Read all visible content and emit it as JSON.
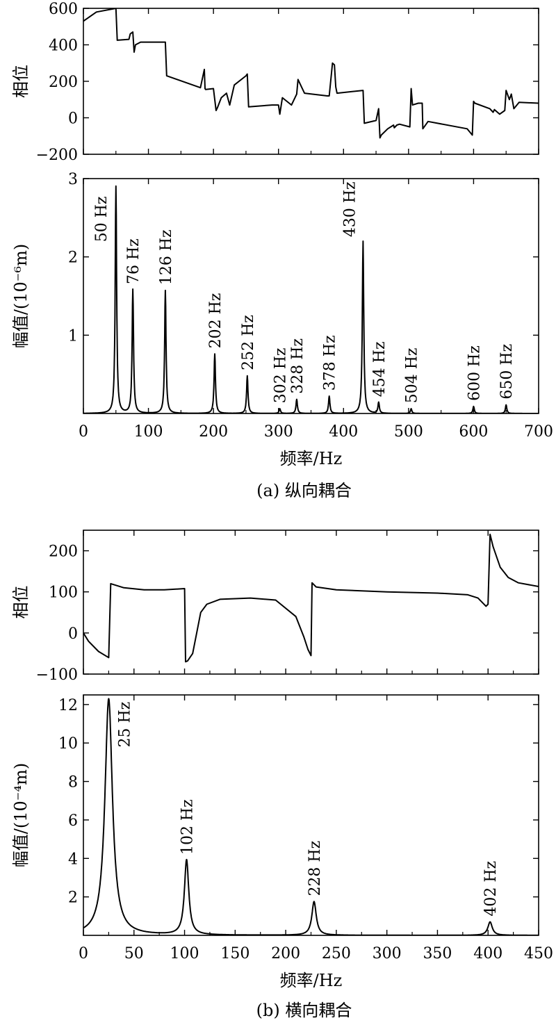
{
  "chart_data": [
    {
      "id": "a",
      "caption": "(a) 纵向耦合",
      "xlabel": "频率/Hz",
      "xlim": [
        0,
        700
      ],
      "xticks": [
        0,
        100,
        200,
        300,
        400,
        500,
        600,
        700
      ],
      "panels": [
        {
          "type": "line",
          "ylabel": "相位",
          "ylim": [
            -200,
            600
          ],
          "yticks": [
            -200,
            0,
            200,
            400,
            600
          ],
          "series": [
            {
              "x": [
                0,
                20,
                50,
                52,
                70,
                72,
                76,
                78,
                80,
                88,
                118,
                126,
                128,
                180,
                186,
                187,
                188,
                200,
                204,
                206,
                212,
                220,
                225,
                232,
                250,
                252,
                254,
                290,
                300,
                302,
                306,
                320,
                328,
                330,
                340,
                375,
                378,
                383,
                386,
                388,
                390,
                430,
                432,
                450,
                454,
                456,
                458,
                468,
                477,
                478,
                482,
                486,
                502,
                504,
                506,
                515,
                521,
                522,
                530,
                590,
                598,
                600,
                602,
                625,
                630,
                632,
                640,
                648,
                650,
                655,
                658,
                662,
                670,
                700
              ],
              "y": [
                530,
                580,
                600,
                425,
                430,
                460,
                470,
                360,
                400,
                415,
                415,
                415,
                230,
                165,
                265,
                160,
                155,
                160,
                40,
                55,
                110,
                135,
                70,
                180,
                230,
                240,
                60,
                70,
                70,
                20,
                110,
                70,
                130,
                210,
                135,
                120,
                120,
                300,
                290,
                170,
                135,
                150,
                -30,
                -15,
                50,
                -110,
                -95,
                -60,
                -40,
                -55,
                -40,
                -35,
                -50,
                160,
                70,
                80,
                80,
                -60,
                -20,
                -60,
                -95,
                90,
                80,
                50,
                30,
                45,
                20,
                40,
                150,
                100,
                130,
                50,
                85,
                80
              ]
            }
          ]
        },
        {
          "type": "line",
          "ylabel": "幅值/(10⁻⁶m)",
          "ylim": [
            0,
            3
          ],
          "yticks": [
            1,
            2,
            3
          ],
          "peaks": [
            {
              "x": 50,
              "amp": 2.9,
              "label": "50 Hz"
            },
            {
              "x": 76,
              "amp": 1.58,
              "label": "76 Hz"
            },
            {
              "x": 126,
              "amp": 1.57,
              "label": "126 Hz"
            },
            {
              "x": 202,
              "amp": 0.76,
              "label": "202 Hz"
            },
            {
              "x": 252,
              "amp": 0.48,
              "label": "252 Hz"
            },
            {
              "x": 302,
              "amp": 0.06,
              "label": "302 Hz"
            },
            {
              "x": 328,
              "amp": 0.18,
              "label": "328 Hz"
            },
            {
              "x": 378,
              "amp": 0.22,
              "label": "378 Hz"
            },
            {
              "x": 430,
              "amp": 2.2,
              "label": "430 Hz"
            },
            {
              "x": 454,
              "amp": 0.14,
              "label": "454 Hz"
            },
            {
              "x": 504,
              "amp": 0.06,
              "label": "504 Hz"
            },
            {
              "x": 600,
              "amp": 0.09,
              "label": "600 Hz"
            },
            {
              "x": 650,
              "amp": 0.11,
              "label": "650 Hz"
            }
          ]
        }
      ]
    },
    {
      "id": "b",
      "caption": "(b) 横向耦合",
      "xlabel": "频率/Hz",
      "xlim": [
        0,
        450
      ],
      "xticks": [
        0,
        50,
        100,
        150,
        200,
        250,
        300,
        350,
        400,
        450
      ],
      "panels": [
        {
          "type": "line",
          "ylabel": "相位",
          "ylim": [
            -100,
            250
          ],
          "yticks": [
            -100,
            0,
            100,
            200
          ],
          "series": [
            {
              "x": [
                0,
                5,
                15,
                25,
                27,
                40,
                60,
                80,
                100,
                101,
                103,
                108,
                112,
                116,
                122,
                135,
                165,
                190,
                210,
                218,
                222,
                225,
                226,
                230,
                250,
                300,
                350,
                380,
                390,
                398,
                400,
                402,
                405,
                412,
                420,
                430,
                450
              ],
              "y": [
                0,
                -20,
                -45,
                -60,
                120,
                110,
                105,
                105,
                108,
                -70,
                -68,
                -50,
                0,
                50,
                70,
                82,
                85,
                80,
                40,
                -10,
                -40,
                -55,
                122,
                112,
                105,
                100,
                97,
                93,
                85,
                65,
                70,
                240,
                210,
                160,
                135,
                122,
                113
              ]
            }
          ]
        },
        {
          "type": "line",
          "ylabel": "幅值/(10⁻⁴m)",
          "ylim": [
            0,
            12.5
          ],
          "yticks": [
            2,
            4,
            6,
            8,
            10,
            12
          ],
          "peaks": [
            {
              "x": 25,
              "amp": 12.3,
              "label": "25 Hz"
            },
            {
              "x": 102,
              "amp": 3.9,
              "label": "102 Hz"
            },
            {
              "x": 228,
              "amp": 1.75,
              "label": "228 Hz"
            },
            {
              "x": 402,
              "amp": 0.7,
              "label": "402 Hz"
            }
          ]
        }
      ]
    }
  ]
}
